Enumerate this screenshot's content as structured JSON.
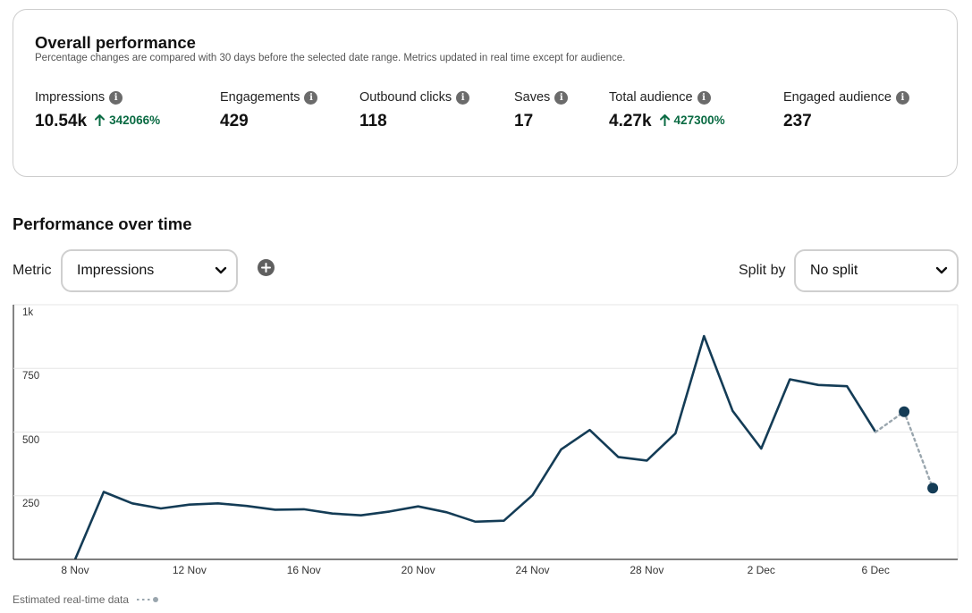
{
  "overall": {
    "title": "Overall performance",
    "subtitle": "Percentage changes are compared with 30 days before the selected date range. Metrics updated in real time except for audience.",
    "metrics": [
      {
        "label": "Impressions",
        "value": "10.54k",
        "delta": "342066%"
      },
      {
        "label": "Engagements",
        "value": "429",
        "delta": ""
      },
      {
        "label": "Outbound clicks",
        "value": "118",
        "delta": ""
      },
      {
        "label": "Saves",
        "value": "17",
        "delta": ""
      },
      {
        "label": "Total audience",
        "value": "4.27k",
        "delta": "427300%"
      },
      {
        "label": "Engaged audience",
        "value": "237",
        "delta": ""
      }
    ]
  },
  "performance": {
    "title": "Performance over time",
    "metric_label": "Metric",
    "metric_value": "Impressions",
    "split_label": "Split by",
    "split_value": "No split"
  },
  "legend": {
    "estimated_label": "Estimated real-time data"
  },
  "colors": {
    "line": "#143c56",
    "estimated": "#9aa6ae",
    "positive": "#0a6b43",
    "grid": "#e6e6e6"
  },
  "icons": {
    "info": "info-icon",
    "delta": "arrow-up-icon",
    "add": "plus-circle-icon",
    "dropdown": "chevron-down-icon"
  },
  "chart_data": {
    "type": "line",
    "title": "Performance over time",
    "ylim": [
      0,
      1000
    ],
    "yticks": [
      250,
      500,
      750,
      1000
    ],
    "ytick_labels": [
      "250",
      "500",
      "750",
      "1k"
    ],
    "x": [
      "8 Nov",
      "9 Nov",
      "10 Nov",
      "11 Nov",
      "12 Nov",
      "13 Nov",
      "14 Nov",
      "15 Nov",
      "16 Nov",
      "17 Nov",
      "18 Nov",
      "19 Nov",
      "20 Nov",
      "21 Nov",
      "22 Nov",
      "23 Nov",
      "24 Nov",
      "25 Nov",
      "26 Nov",
      "27 Nov",
      "28 Nov",
      "29 Nov",
      "30 Nov",
      "1 Dec",
      "2 Dec",
      "3 Dec",
      "4 Dec",
      "5 Dec",
      "6 Dec",
      "7 Dec",
      "8 Dec"
    ],
    "xtick_labels": [
      "8 Nov",
      "12 Nov",
      "16 Nov",
      "20 Nov",
      "24 Nov",
      "28 Nov",
      "2 Dec",
      "6 Dec"
    ],
    "series": [
      {
        "name": "Impressions",
        "values": [
          0,
          265,
          220,
          200,
          215,
          220,
          210,
          195,
          197,
          180,
          173,
          188,
          208,
          185,
          148,
          152,
          252,
          432,
          508,
          402,
          388,
          495,
          877,
          583,
          435,
          707,
          685,
          680,
          500,
          null,
          null
        ]
      },
      {
        "name": "Estimated real-time data",
        "values": [
          null,
          null,
          null,
          null,
          null,
          null,
          null,
          null,
          null,
          null,
          null,
          null,
          null,
          null,
          null,
          null,
          null,
          null,
          null,
          null,
          null,
          null,
          null,
          null,
          null,
          null,
          null,
          null,
          500,
          580,
          280
        ]
      }
    ]
  }
}
